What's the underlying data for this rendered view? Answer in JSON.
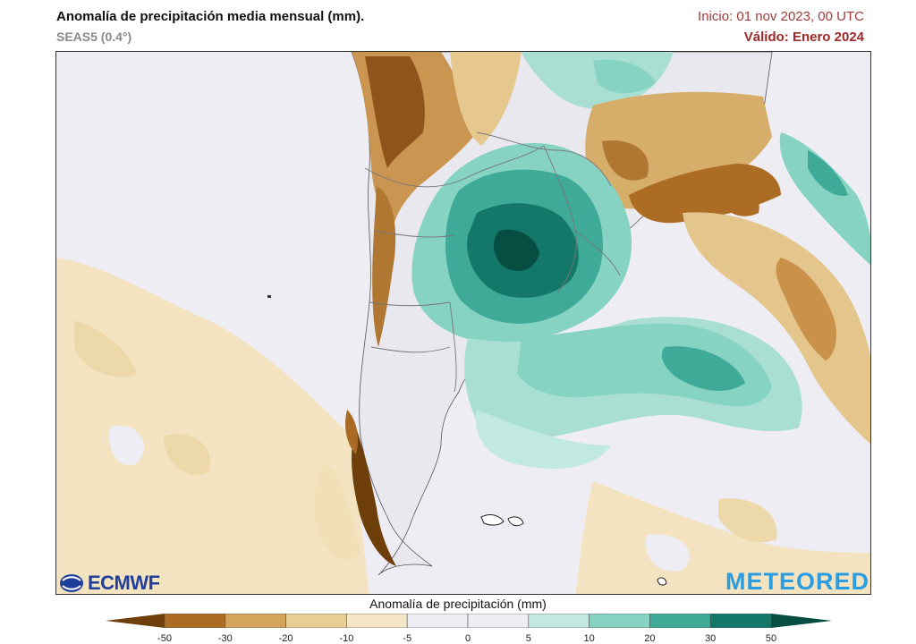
{
  "header": {
    "title": "Anomalía de precipitación media mensual (mm).",
    "subtitle": "SEAS5 (0.4°)",
    "init": "Inicio: 01 nov 2023, 00 UTC",
    "valid": "Válido: Enero 2024"
  },
  "logos": {
    "ecmwf": "ECMWF",
    "meteored": "METEORED"
  },
  "colorbar": {
    "title": "Anomalía de precipitación (mm)",
    "labels": [
      "-50",
      "-30",
      "-20",
      "-10",
      "-5",
      "0",
      "5",
      "10",
      "20",
      "30",
      "50"
    ],
    "colors": [
      "#6e3f0b",
      "#ad6c23",
      "#d2a45c",
      "#e8cd95",
      "#f4e6c6",
      "#eeedf4",
      "#eeedf4",
      "#c2e9e1",
      "#86d3c4",
      "#3faa98",
      "#13786a",
      "#064d42"
    ]
  }
}
